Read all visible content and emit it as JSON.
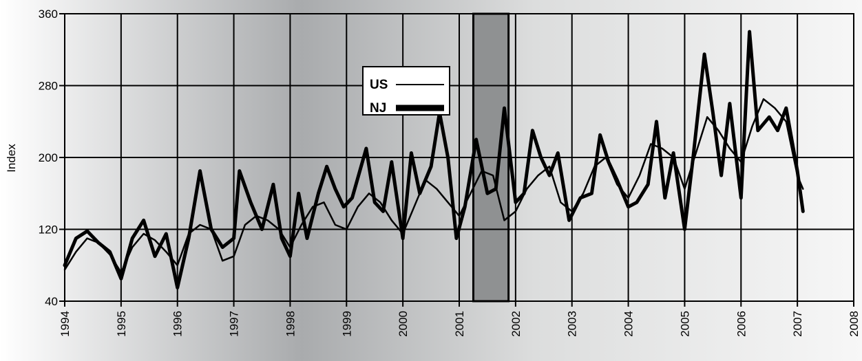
{
  "chart_data": {
    "type": "line",
    "title": "",
    "xlabel": "",
    "ylabel": "Index",
    "xlim": [
      1994,
      2008
    ],
    "ylim": [
      40,
      360
    ],
    "y_ticks": [
      40,
      120,
      200,
      280,
      360
    ],
    "x_ticks": [
      1994,
      1995,
      1996,
      1997,
      1998,
      1999,
      2000,
      2001,
      2002,
      2003,
      2004,
      2005,
      2006,
      2007,
      2008
    ],
    "grid": true,
    "legend": "inside, upper middle",
    "shaded_period": {
      "start": 2001.25,
      "end": 2001.875
    },
    "colors": {
      "us": "#000000",
      "nj": "#000000",
      "shade": "#8f9192"
    },
    "series": [
      {
        "name": "US",
        "x": [
          1994.0,
          1994.2,
          1994.4,
          1994.6,
          1994.8,
          1995.0,
          1995.2,
          1995.4,
          1995.6,
          1995.8,
          1996.0,
          1996.2,
          1996.4,
          1996.6,
          1996.8,
          1997.0,
          1997.2,
          1997.4,
          1997.6,
          1997.8,
          1998.0,
          1998.2,
          1998.4,
          1998.6,
          1998.8,
          1999.0,
          1999.2,
          1999.4,
          1999.6,
          1999.8,
          2000.0,
          2000.2,
          2000.4,
          2000.6,
          2000.8,
          2001.0,
          2001.2,
          2001.4,
          2001.6,
          2001.8,
          2002.0,
          2002.2,
          2002.4,
          2002.6,
          2002.8,
          2003.0,
          2003.2,
          2003.4,
          2003.6,
          2003.8,
          2004.0,
          2004.2,
          2004.4,
          2004.6,
          2004.8,
          2005.0,
          2005.2,
          2005.4,
          2005.6,
          2005.8,
          2006.0,
          2006.2,
          2006.4,
          2006.6,
          2006.8,
          2007.0,
          2007.1
        ],
        "values": [
          75,
          95,
          110,
          105,
          92,
          72,
          100,
          115,
          108,
          95,
          80,
          115,
          125,
          120,
          85,
          90,
          125,
          135,
          130,
          120,
          100,
          125,
          145,
          150,
          125,
          120,
          145,
          160,
          150,
          130,
          115,
          145,
          175,
          165,
          150,
          135,
          160,
          185,
          180,
          130,
          140,
          165,
          180,
          190,
          150,
          140,
          160,
          190,
          200,
          170,
          155,
          180,
          215,
          210,
          200,
          165,
          205,
          245,
          230,
          210,
          195,
          235,
          265,
          255,
          240,
          180,
          165
        ]
      },
      {
        "name": "NJ",
        "x": [
          1994.0,
          1994.2,
          1994.4,
          1994.6,
          1994.8,
          1995.0,
          1995.2,
          1995.4,
          1995.6,
          1995.8,
          1996.0,
          1996.2,
          1996.4,
          1996.6,
          1996.8,
          1997.0,
          1997.1,
          1997.3,
          1997.5,
          1997.7,
          1997.85,
          1998.0,
          1998.15,
          1998.3,
          1998.5,
          1998.65,
          1998.8,
          1998.95,
          1999.1,
          1999.35,
          1999.5,
          1999.65,
          1999.8,
          2000.0,
          2000.15,
          2000.3,
          2000.5,
          2000.65,
          2000.8,
          2000.95,
          2001.1,
          2001.3,
          2001.5,
          2001.65,
          2001.8,
          2002.0,
          2002.15,
          2002.3,
          2002.45,
          2002.6,
          2002.75,
          2002.95,
          2003.15,
          2003.35,
          2003.5,
          2003.65,
          2003.8,
          2004.0,
          2004.15,
          2004.35,
          2004.5,
          2004.65,
          2004.8,
          2005.0,
          2005.15,
          2005.35,
          2005.5,
          2005.65,
          2005.8,
          2006.0,
          2006.15,
          2006.3,
          2006.5,
          2006.65,
          2006.8,
          2007.0,
          2007.1
        ],
        "values": [
          80,
          110,
          118,
          105,
          95,
          65,
          110,
          130,
          90,
          115,
          55,
          110,
          185,
          120,
          100,
          110,
          185,
          150,
          120,
          170,
          110,
          90,
          160,
          110,
          160,
          190,
          165,
          145,
          155,
          210,
          150,
          140,
          195,
          110,
          205,
          160,
          190,
          250,
          200,
          110,
          145,
          220,
          160,
          165,
          255,
          150,
          160,
          230,
          200,
          180,
          205,
          130,
          155,
          160,
          225,
          195,
          175,
          145,
          150,
          170,
          240,
          155,
          205,
          120,
          200,
          315,
          250,
          180,
          260,
          155,
          340,
          230,
          245,
          230,
          255,
          185,
          140
        ]
      }
    ]
  }
}
